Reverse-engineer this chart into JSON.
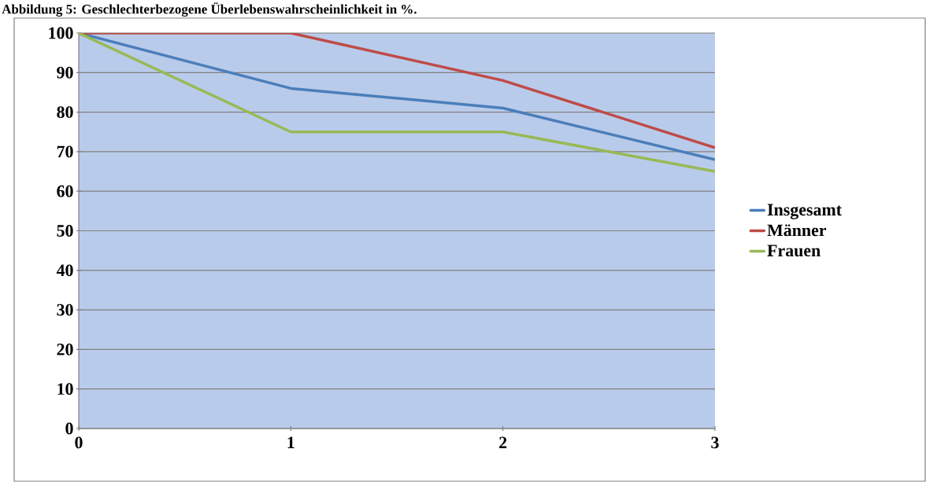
{
  "chart_data": {
    "type": "line",
    "title": "Abbildung 5: Geschlechterbezogene Überlebenswahrscheinlichkeit in %.",
    "x": [
      0,
      1,
      2,
      3
    ],
    "series": [
      {
        "name": "Insgesamt",
        "color": "#4a7ebb",
        "values": [
          100,
          86,
          81,
          68
        ]
      },
      {
        "name": "Männer",
        "color": "#be4b48",
        "values": [
          100,
          100,
          88,
          71
        ]
      },
      {
        "name": "Frauen",
        "color": "#98b954",
        "values": [
          100,
          75,
          75,
          65
        ]
      }
    ],
    "xlim": [
      0,
      3
    ],
    "xticks": [
      0,
      1,
      2,
      3
    ],
    "ylim": [
      0,
      100
    ],
    "yticks": [
      0,
      10,
      20,
      30,
      40,
      50,
      60,
      70,
      80,
      90,
      100
    ],
    "grid": "y",
    "legend": "right",
    "marker": "none",
    "line_style": "solid"
  }
}
